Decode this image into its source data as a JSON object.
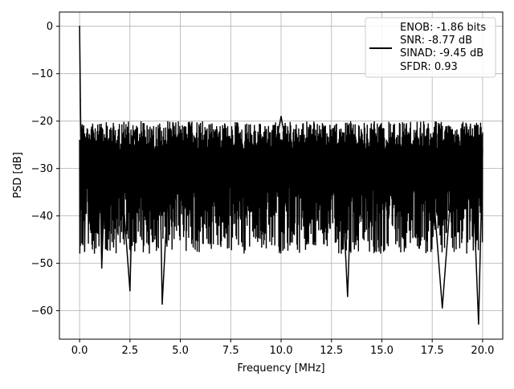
{
  "chart_data": {
    "type": "line",
    "title": "",
    "xlabel": "Frequency [MHz]",
    "ylabel": "PSD [dB]",
    "xlim": [
      -1.0,
      21.0
    ],
    "ylim": [
      -66.0,
      3.0
    ],
    "xticks": [
      0.0,
      2.5,
      5.0,
      7.5,
      10.0,
      12.5,
      15.0,
      17.5,
      20.0
    ],
    "xtick_labels": [
      "0.0",
      "2.5",
      "5.0",
      "7.5",
      "10.0",
      "12.5",
      "15.0",
      "17.5",
      "20.0"
    ],
    "yticks": [
      0,
      -10,
      -20,
      -30,
      -40,
      -50,
      -60
    ],
    "ytick_labels": [
      "0",
      "−10",
      "−20",
      "−30",
      "−40",
      "−50",
      "−60"
    ],
    "grid": true,
    "legend_position": "top-right",
    "legend_lines": [
      "ENOB: -1.86 bits",
      "SNR: -8.77 dB",
      "SINAD: -9.45 dB",
      "SFDR: 0.93"
    ],
    "series": [
      {
        "color": "#000000",
        "x": [
          0.0,
          0.02,
          0.04,
          0.06,
          0.08,
          0.1,
          0.15,
          0.2,
          0.25,
          0.3,
          0.4,
          0.5,
          0.6,
          0.8,
          1.0,
          1.1,
          1.3,
          1.5,
          2.0,
          2.5,
          2.7,
          3.0,
          3.5,
          4.0,
          4.1,
          4.5,
          5.0,
          5.5,
          6.0,
          6.5,
          7.0,
          7.5,
          8.0,
          8.5,
          9.0,
          9.5,
          10.0,
          10.5,
          11.0,
          11.5,
          12.0,
          12.5,
          13.0,
          13.3,
          13.5,
          14.0,
          14.5,
          15.0,
          15.5,
          16.0,
          16.5,
          17.0,
          17.5,
          18.0,
          18.5,
          19.0,
          19.5,
          19.8,
          20.0
        ],
        "y": [
          0.0,
          -7.5,
          -15.5,
          -23.0,
          -28.0,
          -33.0,
          -30.0,
          -21.0,
          -47.5,
          -28.0,
          -26.0,
          -34.0,
          -22.0,
          -29.0,
          -28.0,
          -51.0,
          -26.0,
          -30.0,
          -27.0,
          -55.8,
          -22.0,
          -31.0,
          -27.0,
          -33.0,
          -58.6,
          -26.0,
          -30.0,
          -28.0,
          -31.0,
          -29.0,
          -32.0,
          -31.0,
          -30.0,
          -32.0,
          -29.0,
          -30.0,
          -19.0,
          -31.0,
          -32.0,
          -30.0,
          -31.0,
          -29.0,
          -30.0,
          -57.0,
          -32.0,
          -31.0,
          -30.0,
          -32.0,
          -29.0,
          -30.0,
          -31.0,
          -30.0,
          -32.0,
          -59.4,
          -31.0,
          -29.0,
          -30.0,
          -62.8,
          -26.0
        ]
      }
    ]
  }
}
